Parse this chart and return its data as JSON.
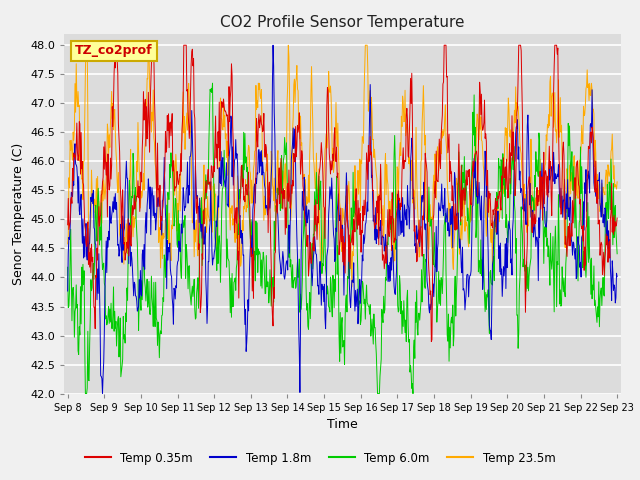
{
  "title": "CO2 Profile Sensor Temperature",
  "xlabel": "Time",
  "ylabel": "Senor Temperature (C)",
  "ylim": [
    42.0,
    48.2
  ],
  "yticks": [
    42.0,
    42.5,
    43.0,
    43.5,
    44.0,
    44.5,
    45.0,
    45.5,
    46.0,
    46.5,
    47.0,
    47.5,
    48.0
  ],
  "xtick_labels": [
    "Sep 8",
    "Sep 9",
    "Sep 10",
    "Sep 11",
    "Sep 12",
    "Sep 13",
    "Sep 14",
    "Sep 15",
    "Sep 16",
    "Sep 17",
    "Sep 18",
    "Sep 19",
    "Sep 20",
    "Sep 21",
    "Sep 22",
    "Sep 23"
  ],
  "colors": {
    "red": "#dd0000",
    "blue": "#0000cc",
    "green": "#00cc00",
    "orange": "#ffaa00"
  },
  "legend_labels": [
    "Temp 0.35m",
    "Temp 1.8m",
    "Temp 6.0m",
    "Temp 23.5m"
  ],
  "annotation_text": "TZ_co2prof",
  "annotation_color": "#cc0000",
  "annotation_box_color": "#ffff99",
  "annotation_box_edge": "#ccaa00",
  "fig_bg": "#f0f0f0",
  "plot_bg": "#dcdcdc",
  "grid_color": "#ffffff",
  "n_points": 900,
  "seed": 7
}
